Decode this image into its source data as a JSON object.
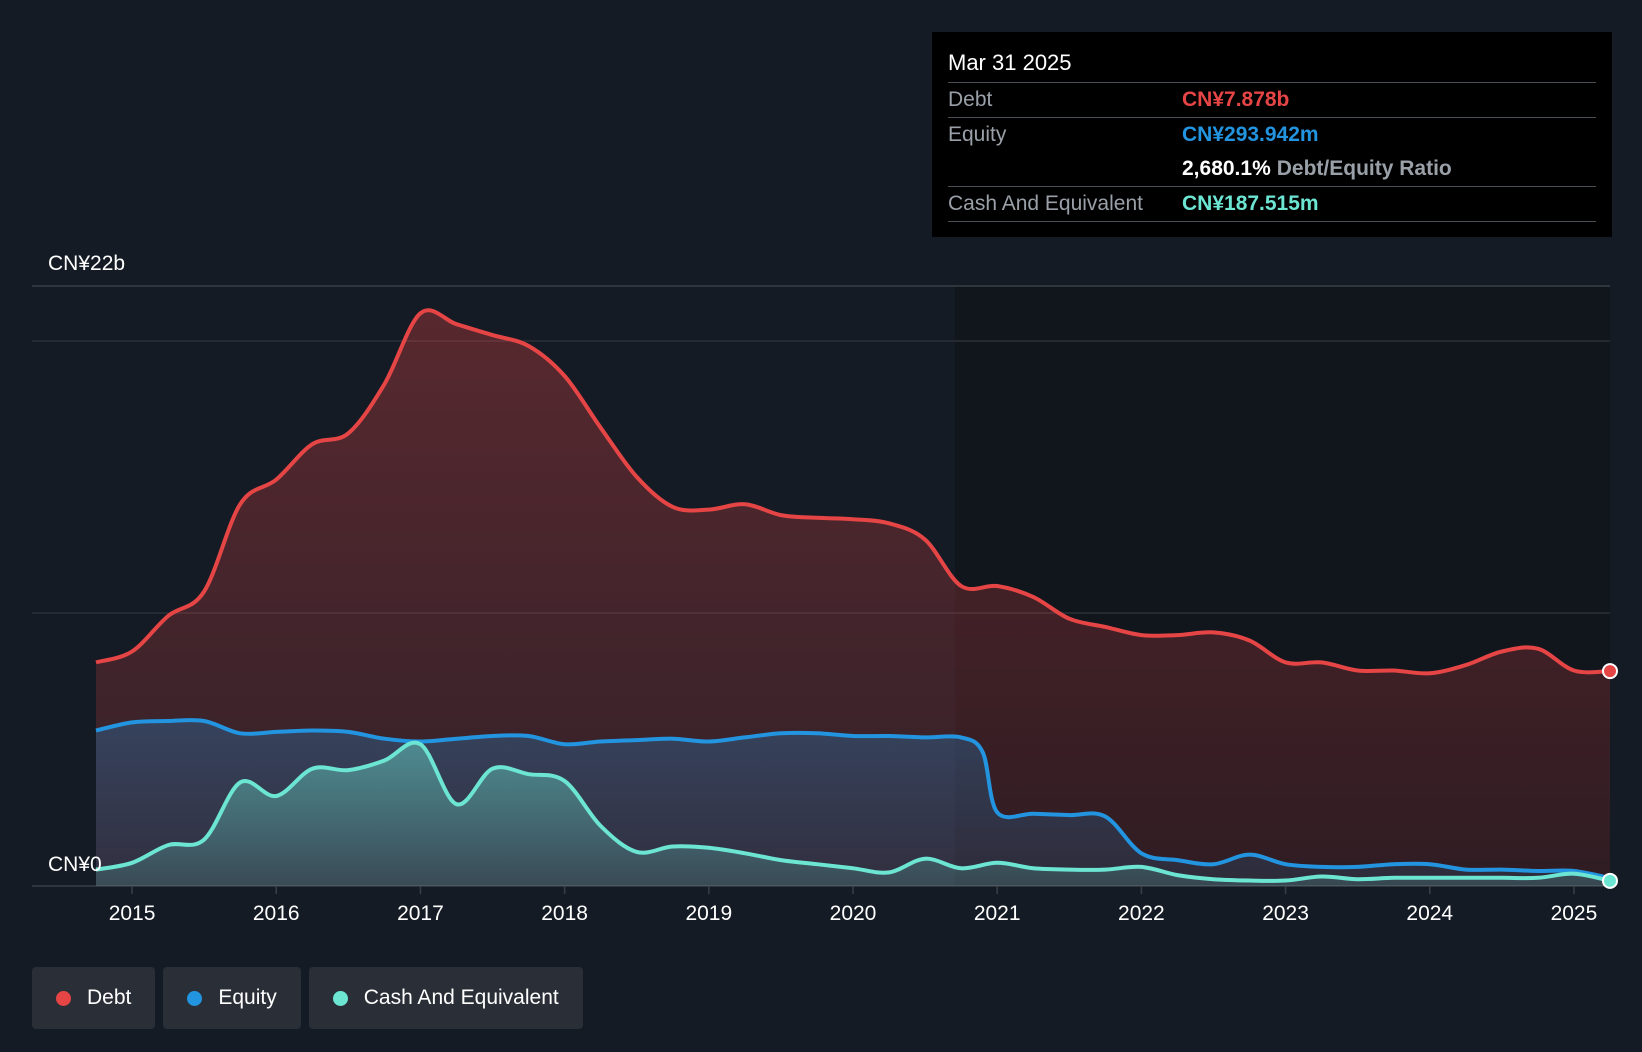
{
  "tooltip": {
    "date": "Mar 31 2025",
    "debt_label": "Debt",
    "debt_value": "CN¥7.878b",
    "equity_label": "Equity",
    "equity_value": "CN¥293.942m",
    "ratio_value": "2,680.1%",
    "ratio_label": "Debt/Equity Ratio",
    "cash_label": "Cash And Equivalent",
    "cash_value": "CN¥187.515m"
  },
  "legend": {
    "debt": "Debt",
    "equity": "Equity",
    "cash": "Cash And Equivalent"
  },
  "colors": {
    "debt": "#e64545",
    "equity": "#2394df",
    "cash": "#6ce5d3",
    "background": "#151b24"
  },
  "chart_data": {
    "type": "area",
    "title": "",
    "y_top_label": "CN¥22b",
    "y_bottom_label": "CN¥0",
    "ylim": [
      0,
      22
    ],
    "xlim": [
      2014.75,
      2025.25
    ],
    "x_ticks": [
      "2015",
      "2016",
      "2017",
      "2018",
      "2019",
      "2020",
      "2021",
      "2022",
      "2023",
      "2024",
      "2025"
    ],
    "x_tick_values": [
      2015,
      2016,
      2017,
      2018,
      2019,
      2020,
      2021,
      2022,
      2023,
      2024,
      2025
    ],
    "series": [
      {
        "name": "Debt",
        "x": [
          2014.75,
          2015.0,
          2015.25,
          2015.5,
          2015.75,
          2016.0,
          2016.25,
          2016.5,
          2016.75,
          2017.0,
          2017.25,
          2017.5,
          2017.75,
          2018.0,
          2018.25,
          2018.5,
          2018.75,
          2019.0,
          2019.25,
          2019.5,
          2019.75,
          2020.0,
          2020.25,
          2020.5,
          2020.75,
          2021.0,
          2021.25,
          2021.5,
          2021.75,
          2022.0,
          2022.25,
          2022.5,
          2022.75,
          2023.0,
          2023.25,
          2023.5,
          2023.75,
          2024.0,
          2024.25,
          2024.5,
          2024.75,
          2025.0,
          2025.25
        ],
        "values": [
          8.2,
          8.6,
          9.9,
          10.8,
          14.0,
          14.9,
          16.2,
          16.6,
          18.4,
          21.0,
          20.6,
          20.2,
          19.8,
          18.7,
          16.8,
          15.0,
          13.9,
          13.8,
          14.0,
          13.6,
          13.5,
          13.45,
          13.3,
          12.7,
          11.0,
          11.0,
          10.6,
          9.8,
          9.5,
          9.2,
          9.2,
          9.3,
          9.0,
          8.2,
          8.2,
          7.9,
          7.9,
          7.8,
          8.1,
          8.6,
          8.7,
          7.9,
          7.88
        ]
      },
      {
        "name": "Equity",
        "x": [
          2014.75,
          2015.0,
          2015.25,
          2015.5,
          2015.75,
          2016.0,
          2016.25,
          2016.5,
          2016.75,
          2017.0,
          2017.25,
          2017.5,
          2017.75,
          2018.0,
          2018.25,
          2018.5,
          2018.75,
          2019.0,
          2019.25,
          2019.5,
          2019.75,
          2020.0,
          2020.25,
          2020.5,
          2020.75,
          2020.9,
          2021.0,
          2021.25,
          2021.5,
          2021.75,
          2022.0,
          2022.25,
          2022.5,
          2022.75,
          2023.0,
          2023.25,
          2023.5,
          2023.75,
          2024.0,
          2024.25,
          2024.5,
          2024.75,
          2025.0,
          2025.25
        ],
        "values": [
          5.7,
          6.0,
          6.05,
          6.05,
          5.6,
          5.65,
          5.7,
          5.65,
          5.4,
          5.3,
          5.4,
          5.5,
          5.5,
          5.2,
          5.3,
          5.35,
          5.4,
          5.3,
          5.45,
          5.6,
          5.6,
          5.5,
          5.5,
          5.45,
          5.45,
          4.9,
          2.7,
          2.65,
          2.6,
          2.55,
          1.2,
          0.95,
          0.8,
          1.15,
          0.8,
          0.7,
          0.7,
          0.8,
          0.8,
          0.6,
          0.6,
          0.55,
          0.55,
          0.29
        ]
      },
      {
        "name": "Cash And Equivalent",
        "x": [
          2014.75,
          2015.0,
          2015.25,
          2015.5,
          2015.75,
          2016.0,
          2016.25,
          2016.5,
          2016.75,
          2017.0,
          2017.25,
          2017.5,
          2017.75,
          2018.0,
          2018.25,
          2018.5,
          2018.75,
          2019.0,
          2019.25,
          2019.5,
          2019.75,
          2020.0,
          2020.25,
          2020.5,
          2020.75,
          2021.0,
          2021.25,
          2021.5,
          2021.75,
          2022.0,
          2022.25,
          2022.5,
          2022.75,
          2023.0,
          2023.25,
          2023.5,
          2023.75,
          2024.0,
          2024.25,
          2024.5,
          2024.75,
          2025.0,
          2025.25
        ],
        "values": [
          0.6,
          0.85,
          1.5,
          1.7,
          3.8,
          3.3,
          4.3,
          4.25,
          4.6,
          5.2,
          3.0,
          4.3,
          4.1,
          3.85,
          2.2,
          1.25,
          1.45,
          1.4,
          1.2,
          0.95,
          0.8,
          0.65,
          0.5,
          1.0,
          0.65,
          0.85,
          0.65,
          0.6,
          0.6,
          0.7,
          0.4,
          0.25,
          0.2,
          0.2,
          0.35,
          0.25,
          0.3,
          0.3,
          0.3,
          0.3,
          0.3,
          0.45,
          0.19
        ]
      }
    ]
  }
}
